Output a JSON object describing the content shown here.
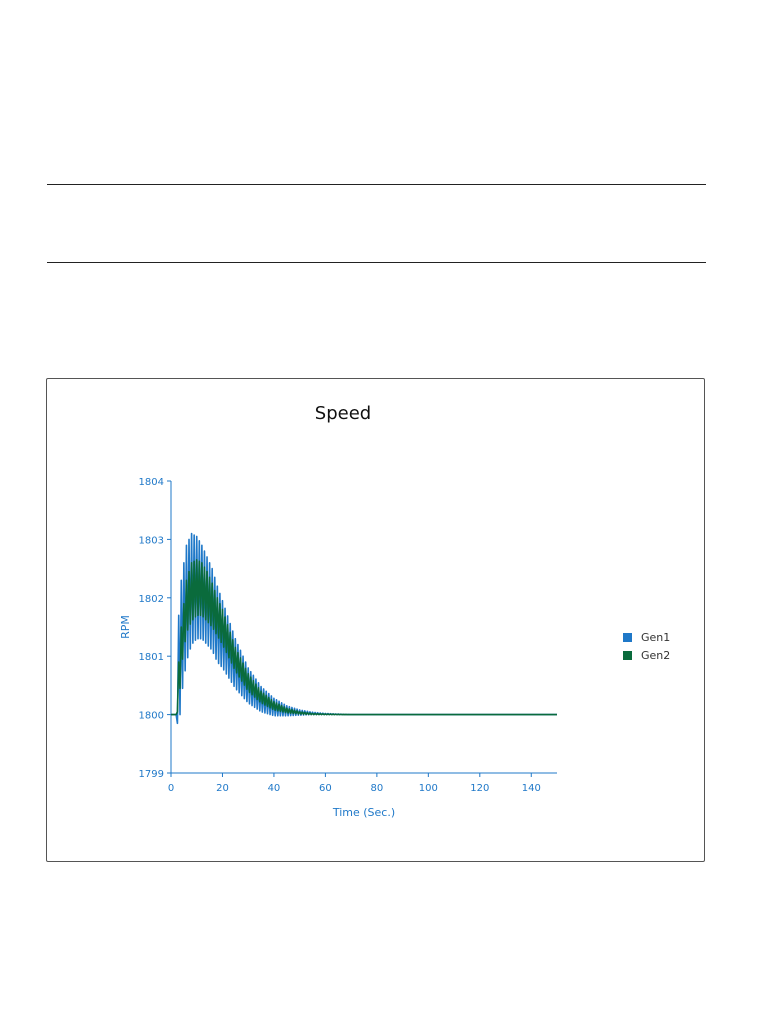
{
  "chart_data": {
    "type": "line",
    "title": "Speed",
    "xlabel": "Time (Sec.)",
    "ylabel": "RPM",
    "xlim": [
      0,
      150
    ],
    "ylim": [
      1799,
      1804
    ],
    "x_ticks": [
      "0",
      "20",
      "40",
      "60",
      "80",
      "100",
      "120",
      "140"
    ],
    "y_ticks": [
      "1799",
      "1800",
      "1801",
      "1802",
      "1803",
      "1804"
    ],
    "grid": false,
    "legend_position": "right",
    "series": [
      {
        "name": "Gen1",
        "color": "#1f78c8",
        "x": [
          0,
          2,
          3,
          4,
          5,
          6,
          8,
          10,
          12,
          14,
          16,
          18,
          20,
          25,
          30,
          35,
          40,
          45,
          50,
          55,
          60,
          70,
          80,
          100,
          150
        ],
        "upper": [
          1800.0,
          1800.0,
          1801.7,
          1802.3,
          1802.6,
          1802.9,
          1803.1,
          1803.05,
          1802.9,
          1802.7,
          1802.5,
          1802.2,
          1801.95,
          1801.3,
          1800.8,
          1800.48,
          1800.28,
          1800.15,
          1800.08,
          1800.04,
          1800.02,
          1800.0,
          1800.0,
          1800.0,
          1800.0
        ],
        "lower": [
          1800.0,
          1800.0,
          1799.7,
          1800.3,
          1800.6,
          1800.9,
          1801.2,
          1801.3,
          1801.3,
          1801.2,
          1801.1,
          1800.9,
          1800.8,
          1800.45,
          1800.2,
          1800.05,
          1799.98,
          1799.98,
          1799.99,
          1800.0,
          1800.0,
          1800.0,
          1800.0,
          1800.0,
          1800.0
        ]
      },
      {
        "name": "Gen2",
        "color": "#0a6b3c",
        "x": [
          0,
          2,
          3,
          4,
          5,
          6,
          8,
          10,
          12,
          14,
          16,
          18,
          20,
          25,
          30,
          35,
          40,
          45,
          50,
          55,
          60,
          70,
          80,
          100,
          150
        ],
        "upper": [
          1800.0,
          1800.0,
          1800.9,
          1801.5,
          1801.9,
          1802.3,
          1802.6,
          1802.65,
          1802.6,
          1802.45,
          1802.25,
          1802.0,
          1801.8,
          1801.15,
          1800.7,
          1800.4,
          1800.22,
          1800.11,
          1800.05,
          1800.02,
          1800.01,
          1800.0,
          1800.0,
          1800.0,
          1800.0
        ],
        "lower": [
          1800.0,
          1800.0,
          1800.1,
          1800.8,
          1801.1,
          1801.4,
          1801.6,
          1801.7,
          1801.7,
          1801.6,
          1801.5,
          1801.35,
          1801.2,
          1800.75,
          1800.4,
          1800.2,
          1800.08,
          1800.03,
          1800.01,
          1800.0,
          1800.0,
          1800.0,
          1800.0,
          1800.0,
          1800.0
        ]
      }
    ]
  }
}
